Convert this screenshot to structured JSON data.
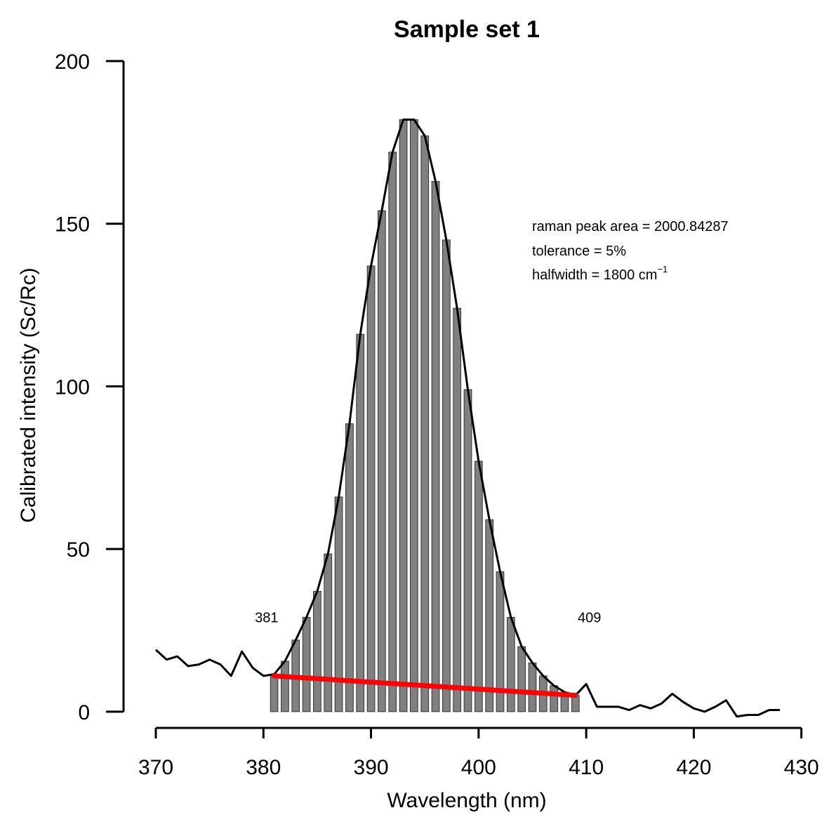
{
  "chart_data": {
    "type": "bar",
    "title": "Sample set 1",
    "xlabel": "Wavelength (nm)",
    "ylabel": "Calibrated intensity (Sc/Rc)",
    "xlim": [
      367,
      431
    ],
    "ylim": [
      -5,
      200
    ],
    "xticks": [
      370,
      380,
      390,
      400,
      410,
      420,
      430
    ],
    "yticks": [
      0,
      50,
      100,
      150,
      200
    ],
    "grid": false,
    "bars": {
      "x": [
        381,
        382,
        383,
        384,
        385,
        386,
        387,
        388,
        389,
        390,
        391,
        392,
        393,
        394,
        395,
        396,
        397,
        398,
        399,
        400,
        401,
        402,
        403,
        404,
        405,
        406,
        407,
        408,
        409
      ],
      "values": [
        11,
        15.5,
        22,
        29,
        37,
        48.5,
        66,
        88.5,
        116,
        137,
        154,
        172,
        182,
        182,
        177,
        163,
        145,
        124,
        99,
        77,
        59,
        43,
        29,
        20,
        15,
        11,
        8,
        6,
        5
      ],
      "color": "#808080"
    },
    "spectrum": {
      "x": [
        370,
        371,
        372,
        373,
        374,
        375,
        376,
        377,
        378,
        379,
        380,
        381,
        382,
        383,
        384,
        385,
        386,
        387,
        388,
        389,
        390,
        391,
        392,
        393,
        394,
        395,
        396,
        397,
        398,
        399,
        400,
        401,
        402,
        403,
        404,
        405,
        406,
        407,
        408,
        409,
        410,
        411,
        412,
        413,
        414,
        415,
        416,
        417,
        418,
        419,
        420,
        421,
        422,
        423,
        424,
        425,
        426,
        427,
        428
      ],
      "y": [
        19,
        16,
        17,
        14,
        14.5,
        16,
        14.5,
        11,
        18.5,
        13.5,
        11,
        11.5,
        15.5,
        22,
        29,
        37,
        48.5,
        66,
        88.5,
        116,
        137,
        154,
        172,
        182,
        182,
        177,
        163,
        145,
        124,
        99,
        77,
        59,
        43,
        29,
        20,
        15,
        11,
        8,
        6,
        5,
        8.5,
        1.5,
        1.5,
        1.5,
        0.5,
        2,
        1,
        2.5,
        5.5,
        3,
        1,
        0,
        1.5,
        3.5,
        -1.5,
        -1,
        -1,
        0.5,
        0.5
      ],
      "color": "#000000"
    },
    "baseline": {
      "x": [
        381,
        409
      ],
      "y": [
        11,
        5
      ],
      "color": "#ff0000"
    },
    "annotations": [
      {
        "text": "381",
        "x": 380.3,
        "y": 29
      },
      {
        "text": "409",
        "x": 410.3,
        "y": 29
      }
    ],
    "info": {
      "line1": "raman peak area = 2000.84287",
      "line2": "tolerance = 5%",
      "line3_main": "halfwidth = 1800 cm",
      "line3_sup": "−1"
    }
  }
}
